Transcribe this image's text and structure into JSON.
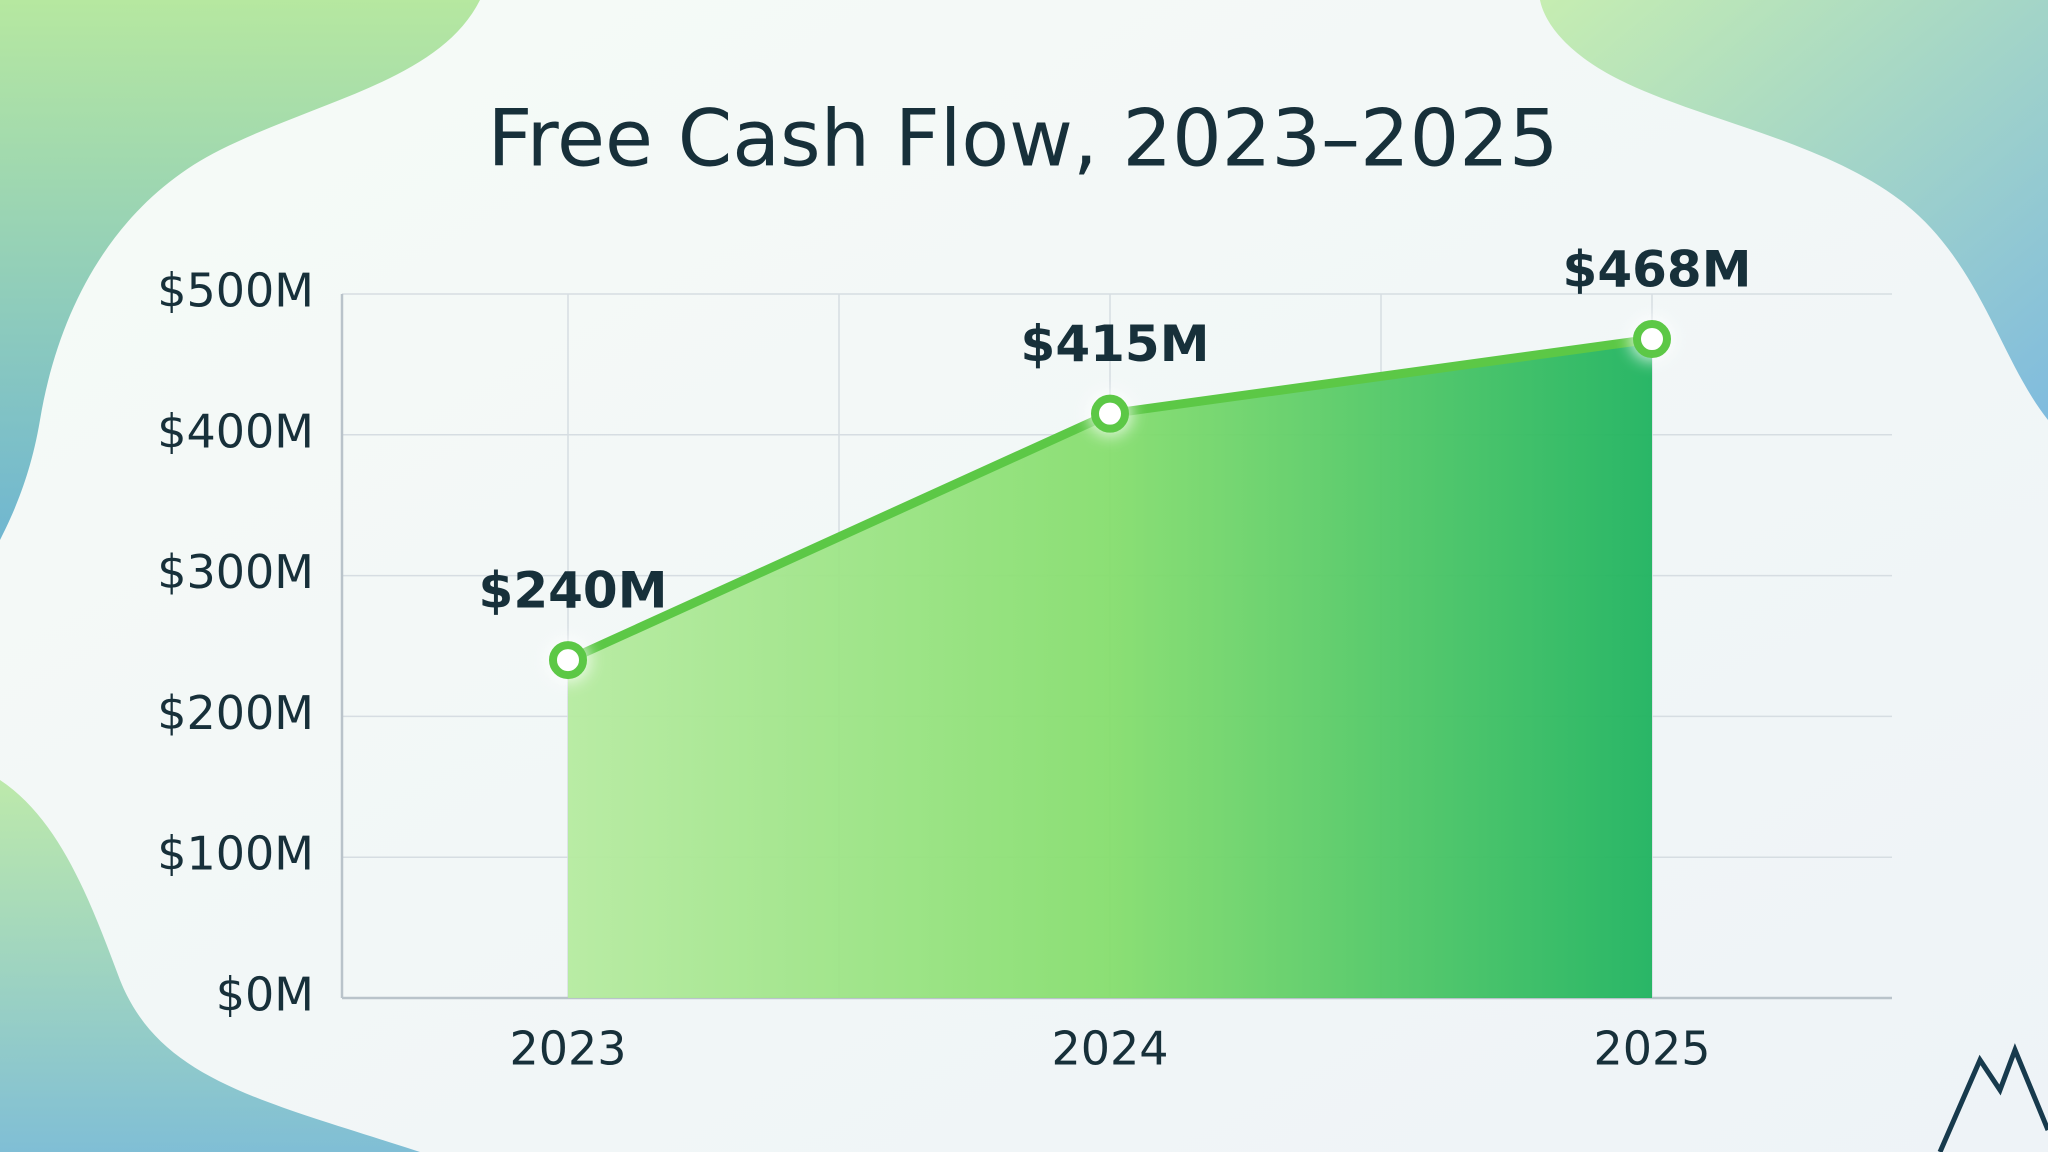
{
  "chart_data": {
    "type": "area",
    "title": "Free Cash Flow, 2023–2025",
    "categories": [
      "2023",
      "2024",
      "2025"
    ],
    "values": [
      240,
      415,
      468
    ],
    "value_labels": [
      "$240M",
      "$415M",
      "$468M"
    ],
    "color": "#5cc846",
    "area_colors": [
      "#b6eba0",
      "#86de6e",
      "#1fb35f"
    ],
    "ylim": [
      0,
      500
    ],
    "yticks": [
      {
        "value": 0,
        "label": "$0M"
      },
      {
        "value": 100,
        "label": "$100M"
      },
      {
        "value": 200,
        "label": "$200M"
      },
      {
        "value": 300,
        "label": "$300M"
      },
      {
        "value": 400,
        "label": "$400M"
      },
      {
        "value": 500,
        "label": "$500M"
      }
    ],
    "grid": true
  }
}
